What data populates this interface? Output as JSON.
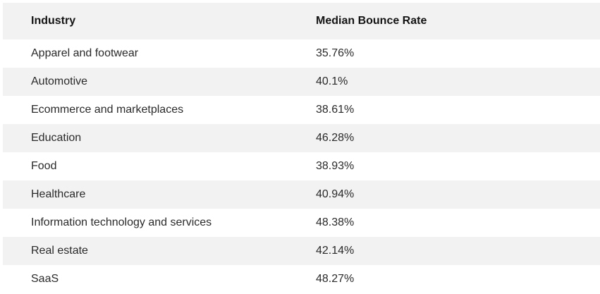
{
  "table": {
    "headers": {
      "industry": "Industry",
      "rate": "Median Bounce Rate"
    },
    "rows": [
      {
        "industry": "Apparel and footwear",
        "rate": "35.76%"
      },
      {
        "industry": "Automotive",
        "rate": "40.1%"
      },
      {
        "industry": "Ecommerce and marketplaces",
        "rate": "38.61%"
      },
      {
        "industry": "Education",
        "rate": "46.28%"
      },
      {
        "industry": "Food",
        "rate": "38.93%"
      },
      {
        "industry": "Healthcare",
        "rate": "40.94%"
      },
      {
        "industry": "Information technology and services",
        "rate": "48.38%"
      },
      {
        "industry": "Real estate",
        "rate": "42.14%"
      },
      {
        "industry": "SaaS",
        "rate": "48.27%"
      }
    ]
  }
}
